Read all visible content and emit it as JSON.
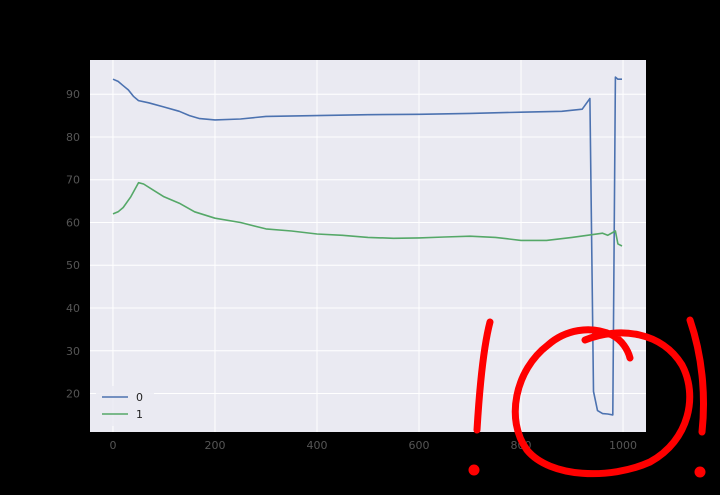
{
  "chart_data": {
    "type": "line",
    "xlabel": "",
    "ylabel": "",
    "xlim": [
      -45,
      1045
    ],
    "ylim": [
      11,
      98
    ],
    "x_ticks": [
      0,
      200,
      400,
      600,
      800,
      1000
    ],
    "y_ticks": [
      20,
      30,
      40,
      50,
      60,
      70,
      80,
      90
    ],
    "grid": true,
    "legend_position": "lower-left",
    "background_color": "#eaeaf2",
    "series": [
      {
        "name": "0",
        "color": "#4c72b0",
        "points": [
          [
            0,
            93.5
          ],
          [
            10,
            93
          ],
          [
            20,
            92
          ],
          [
            30,
            91
          ],
          [
            40,
            89.5
          ],
          [
            50,
            88.5
          ],
          [
            70,
            88
          ],
          [
            100,
            87
          ],
          [
            130,
            86
          ],
          [
            150,
            85
          ],
          [
            170,
            84.3
          ],
          [
            200,
            84
          ],
          [
            250,
            84.2
          ],
          [
            300,
            84.8
          ],
          [
            400,
            85
          ],
          [
            500,
            85.2
          ],
          [
            600,
            85.3
          ],
          [
            700,
            85.5
          ],
          [
            800,
            85.8
          ],
          [
            880,
            86
          ],
          [
            920,
            86.5
          ],
          [
            935,
            89
          ],
          [
            942,
            20.5
          ],
          [
            950,
            16
          ],
          [
            960,
            15.3
          ],
          [
            970,
            15.2
          ],
          [
            980,
            15
          ],
          [
            985,
            94
          ],
          [
            990,
            93.5
          ],
          [
            998,
            93.5
          ]
        ]
      },
      {
        "name": "1",
        "color": "#55a868",
        "points": [
          [
            0,
            62
          ],
          [
            10,
            62.5
          ],
          [
            20,
            63.5
          ],
          [
            35,
            66
          ],
          [
            50,
            69.3
          ],
          [
            60,
            69
          ],
          [
            80,
            67.5
          ],
          [
            100,
            66
          ],
          [
            130,
            64.5
          ],
          [
            160,
            62.5
          ],
          [
            200,
            61
          ],
          [
            250,
            60
          ],
          [
            300,
            58.5
          ],
          [
            350,
            58
          ],
          [
            400,
            57.3
          ],
          [
            450,
            57
          ],
          [
            500,
            56.5
          ],
          [
            550,
            56.3
          ],
          [
            600,
            56.4
          ],
          [
            650,
            56.6
          ],
          [
            700,
            56.8
          ],
          [
            750,
            56.5
          ],
          [
            800,
            55.8
          ],
          [
            850,
            55.8
          ],
          [
            900,
            56.5
          ],
          [
            930,
            57
          ],
          [
            960,
            57.5
          ],
          [
            970,
            57
          ],
          [
            985,
            58
          ],
          [
            990,
            55
          ],
          [
            998,
            54.5
          ]
        ]
      }
    ]
  }
}
